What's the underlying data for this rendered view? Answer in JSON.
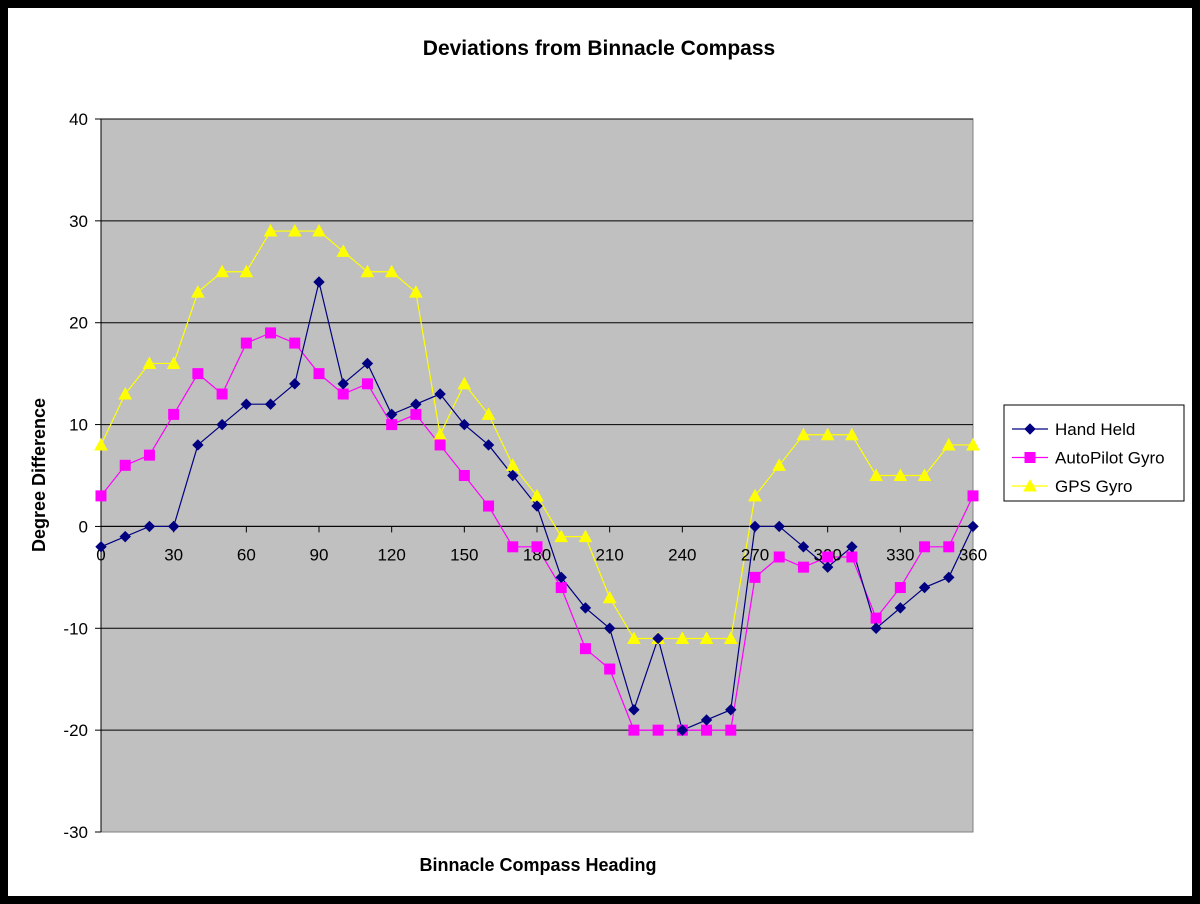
{
  "chart_data": {
    "type": "line",
    "title": "Deviations from Binnacle Compass",
    "xlabel": "Binnacle Compass Heading",
    "ylabel": "Degree Difference",
    "xlim": [
      0,
      360
    ],
    "ylim": [
      -30,
      40
    ],
    "xticks": [
      "0",
      "30",
      "60",
      "90",
      "120",
      "150",
      "180",
      "210",
      "240",
      "270",
      "300",
      "330",
      "360"
    ],
    "yticks": [
      "40",
      "30",
      "20",
      "10",
      "0",
      "-10",
      "-20",
      "-30"
    ],
    "grid": "horizontal",
    "legend_position": "right",
    "plot_background": "#C0C0C0",
    "x": [
      0,
      10,
      20,
      30,
      40,
      50,
      60,
      70,
      80,
      90,
      100,
      110,
      120,
      130,
      140,
      150,
      160,
      170,
      180,
      190,
      200,
      210,
      220,
      230,
      240,
      250,
      260,
      270,
      280,
      290,
      300,
      310,
      320,
      330,
      340,
      350,
      360
    ],
    "series": [
      {
        "name": "Hand Held",
        "color": "#000080",
        "marker": "diamond",
        "values": [
          -2,
          -1,
          0,
          0,
          8,
          10,
          12,
          12,
          14,
          24,
          14,
          16,
          11,
          12,
          13,
          10,
          8,
          5,
          2,
          -5,
          -8,
          -10,
          -18,
          -11,
          -20,
          -19,
          -18,
          0,
          0,
          -2,
          -4,
          -2,
          -10,
          -8,
          -6,
          -5,
          0
        ]
      },
      {
        "name": "AutoPilot Gyro",
        "color": "#FF00FF",
        "marker": "square",
        "values": [
          3,
          6,
          7,
          11,
          15,
          13,
          18,
          19,
          18,
          15,
          13,
          14,
          10,
          11,
          8,
          5,
          2,
          -2,
          -2,
          -6,
          -12,
          -14,
          -20,
          -20,
          -20,
          -20,
          -20,
          -5,
          -3,
          -4,
          -3,
          -3,
          -9,
          -6,
          -2,
          -2,
          3
        ]
      },
      {
        "name": "GPS Gyro",
        "color": "#FFFF00",
        "marker": "triangle",
        "values": [
          8,
          13,
          16,
          16,
          23,
          25,
          25,
          29,
          29,
          29,
          27,
          25,
          25,
          23,
          9,
          14,
          11,
          6,
          3,
          -1,
          -1,
          -7,
          -11,
          -11,
          -11,
          -11,
          -11,
          3,
          6,
          9,
          9,
          9,
          5,
          5,
          5,
          8,
          8
        ]
      }
    ]
  }
}
